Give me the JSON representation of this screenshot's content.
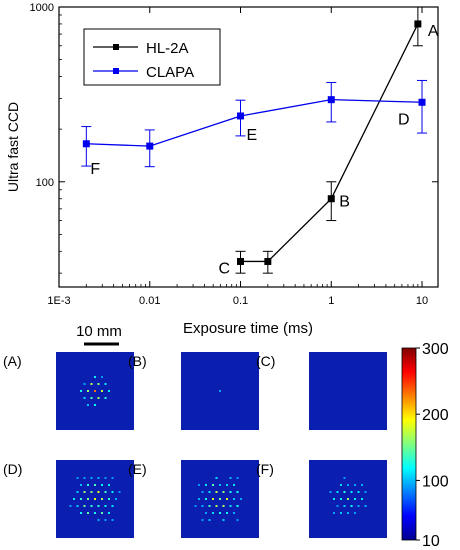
{
  "chart_data": [
    {
      "type": "line",
      "xlabel": "Exposure time (ms)",
      "ylabel": "Ultra fast CCD",
      "xscale": "log",
      "yscale": "log",
      "xlim": [
        0.001,
        15
      ],
      "ylim": [
        25,
        1000
      ],
      "x_ticks": [
        {
          "value": 0.001,
          "label": "1E-3"
        },
        {
          "value": 0.01,
          "label": "0.01"
        },
        {
          "value": 0.1,
          "label": "0.1"
        },
        {
          "value": 1,
          "label": "1"
        },
        {
          "value": 10,
          "label": "10"
        }
      ],
      "y_ticks": [
        {
          "value": 100,
          "label": "100"
        },
        {
          "value": 1000,
          "label": "1000"
        }
      ],
      "legend_position": "top-left",
      "series": [
        {
          "name": "HL-2A",
          "color": "#000000",
          "marker": "square",
          "points": [
            {
              "x": 0.1,
              "y": 35,
              "err": 5,
              "label": "C"
            },
            {
              "x": 0.2,
              "y": 35,
              "err": 5,
              "label": ""
            },
            {
              "x": 1,
              "y": 80,
              "err": 20,
              "label": "B"
            },
            {
              "x": 9,
              "y": 800,
              "err": 200,
              "label": "A"
            }
          ]
        },
        {
          "name": "CLAPA",
          "color": "#0000ee",
          "marker": "square",
          "points": [
            {
              "x": 0.002,
              "y": 165,
              "err": 42,
              "label": "F"
            },
            {
              "x": 0.01,
              "y": 160,
              "err": 38,
              "label": ""
            },
            {
              "x": 0.1,
              "y": 238,
              "err": 55,
              "label": "E"
            },
            {
              "x": 1,
              "y": 295,
              "err": 75,
              "label": ""
            },
            {
              "x": 10,
              "y": 285,
              "err": 95,
              "label": "D"
            }
          ]
        }
      ]
    },
    {
      "type": "heatmap",
      "scale_bar_label": "10 mm",
      "colorbar": {
        "ticks": [
          {
            "value": 10,
            "label": "10"
          },
          {
            "value": 100,
            "label": "100"
          },
          {
            "value": 200,
            "label": "200"
          },
          {
            "value": 300,
            "label": "300"
          }
        ],
        "range": [
          10,
          300
        ]
      },
      "panels": [
        {
          "label": "(A)",
          "intensity": 0.9,
          "spread": 0.25
        },
        {
          "label": "(B)",
          "intensity": 0.15,
          "spread": 0.05
        },
        {
          "label": "(C)",
          "intensity": 0.02,
          "spread": 0.0
        },
        {
          "label": "(D)",
          "intensity": 0.75,
          "spread": 0.6
        },
        {
          "label": "(E)",
          "intensity": 0.7,
          "spread": 0.6
        },
        {
          "label": "(F)",
          "intensity": 0.45,
          "spread": 0.5
        }
      ]
    }
  ]
}
